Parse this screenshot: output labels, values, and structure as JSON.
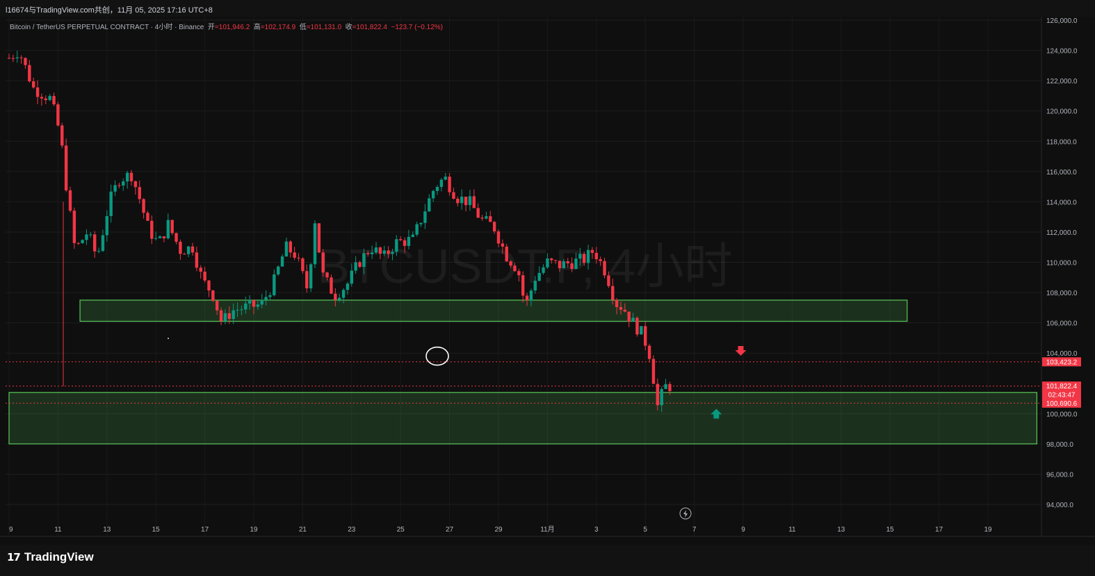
{
  "header": {
    "share_text": "l16674与TradingView.com共创，11月 05, 2025 17:16 UTC+8"
  },
  "legend": {
    "symbol": "Bitcoin / TetherUS PERPETUAL CONTRACT · 4小时 · Binance",
    "open_label": "开",
    "open_value": "=101,946.2",
    "high_label": "高",
    "high_value": "=102,174.9",
    "low_label": "低",
    "low_value": "=101,131.0",
    "close_label": "收",
    "close_value": "=101,822.4",
    "change": "−123.7 (−0.12%)"
  },
  "watermark": "BTCUSDT.P, 4小时",
  "brand": {
    "icon": "17",
    "name": "TradingView"
  },
  "colors": {
    "up": "#089981",
    "down": "#f23645",
    "zone": "#4caf50",
    "background": "#121212"
  },
  "chart_data": {
    "type": "candlestick",
    "timeframe": "4小时",
    "yaxis_ticks": [
      "126,000.0",
      "124,000.0",
      "122,000.0",
      "120,000.0",
      "118,000.0",
      "116,000.0",
      "114,000.0",
      "112,000.0",
      "110,000.0",
      "108,000.0",
      "106,000.0",
      "104,000.0",
      "100,000.0",
      "98,000.0",
      "96,000.0",
      "94,000.0"
    ],
    "xaxis_ticks": [
      "9",
      "11",
      "13",
      "15",
      "17",
      "19",
      "21",
      "23",
      "25",
      "27",
      "29",
      "11月",
      "3",
      "5",
      "7",
      "9",
      "11",
      "13",
      "15",
      "17",
      "19"
    ],
    "ylim": [
      93000,
      126500
    ],
    "price_labels": [
      {
        "text": "103,423.2",
        "value": 103423.2,
        "color": "#f23645"
      },
      {
        "text": "101,822.4",
        "value": 101822.4,
        "color": "#f23645"
      },
      {
        "text": "02:43:47",
        "value": 101260,
        "color": "#f23645"
      },
      {
        "text": "100,690.6",
        "value": 100690.6,
        "color": "#f23645"
      }
    ],
    "zones": [
      {
        "from_x": 2.9,
        "to_x": 36.7,
        "low": 106100,
        "high": 107500
      },
      {
        "from_x": 0.0,
        "to_x": 42.0,
        "low": 98000,
        "high": 101400
      }
    ],
    "horizontal_lines": [
      103423.2,
      101822.4,
      100690.6
    ],
    "markers": [
      {
        "type": "down-arrow",
        "x": 29.9,
        "price": 104100
      },
      {
        "type": "up-arrow",
        "x": 28.9,
        "price": 99950
      },
      {
        "type": "circle",
        "x": 17.5,
        "price": 103800
      }
    ],
    "keypoints": [
      {
        "x": 0.0,
        "price": 123500
      },
      {
        "x": 0.4,
        "price": 124000
      },
      {
        "x": 1.0,
        "price": 121500
      },
      {
        "x": 1.7,
        "price": 120800
      },
      {
        "x": 2.1,
        "price": 118400
      },
      {
        "x": 2.4,
        "price": 114200
      },
      {
        "x": 2.7,
        "price": 110800
      },
      {
        "x": 3.2,
        "price": 112000
      },
      {
        "x": 3.6,
        "price": 110300
      },
      {
        "x": 4.1,
        "price": 114000
      },
      {
        "x": 4.5,
        "price": 115500
      },
      {
        "x": 5.0,
        "price": 115800
      },
      {
        "x": 5.3,
        "price": 114400
      },
      {
        "x": 5.7,
        "price": 112200
      },
      {
        "x": 6.1,
        "price": 111200
      },
      {
        "x": 6.5,
        "price": 112500
      },
      {
        "x": 7.0,
        "price": 110800
      },
      {
        "x": 7.5,
        "price": 111000
      },
      {
        "x": 7.9,
        "price": 108800
      },
      {
        "x": 8.3,
        "price": 108000
      },
      {
        "x": 8.7,
        "price": 106000
      },
      {
        "x": 9.1,
        "price": 106800
      },
      {
        "x": 9.6,
        "price": 107000
      },
      {
        "x": 10.3,
        "price": 107200
      },
      {
        "x": 10.8,
        "price": 108600
      },
      {
        "x": 11.3,
        "price": 111000
      },
      {
        "x": 11.7,
        "price": 110500
      },
      {
        "x": 12.2,
        "price": 108200
      },
      {
        "x": 12.5,
        "price": 112800
      },
      {
        "x": 12.8,
        "price": 109200
      },
      {
        "x": 13.3,
        "price": 107800
      },
      {
        "x": 13.8,
        "price": 108500
      },
      {
        "x": 14.3,
        "price": 110000
      },
      {
        "x": 14.8,
        "price": 111000
      },
      {
        "x": 15.3,
        "price": 110300
      },
      {
        "x": 15.8,
        "price": 111300
      },
      {
        "x": 16.5,
        "price": 111500
      },
      {
        "x": 17.0,
        "price": 113500
      },
      {
        "x": 17.4,
        "price": 115000
      },
      {
        "x": 17.8,
        "price": 115600
      },
      {
        "x": 18.3,
        "price": 114300
      },
      {
        "x": 18.8,
        "price": 114000
      },
      {
        "x": 19.3,
        "price": 112800
      },
      {
        "x": 19.8,
        "price": 112400
      },
      {
        "x": 20.3,
        "price": 110500
      },
      {
        "x": 20.8,
        "price": 109500
      },
      {
        "x": 21.1,
        "price": 107000
      },
      {
        "x": 21.5,
        "price": 109000
      },
      {
        "x": 22.0,
        "price": 110000
      },
      {
        "x": 22.5,
        "price": 109800
      },
      {
        "x": 23.0,
        "price": 110000
      },
      {
        "x": 23.5,
        "price": 110200
      },
      {
        "x": 23.9,
        "price": 110800
      },
      {
        "x": 24.4,
        "price": 109300
      },
      {
        "x": 24.8,
        "price": 107300
      },
      {
        "x": 25.1,
        "price": 107000
      },
      {
        "x": 25.5,
        "price": 106000
      },
      {
        "x": 25.9,
        "price": 105200
      },
      {
        "x": 26.2,
        "price": 103800
      },
      {
        "x": 26.5,
        "price": 100500
      },
      {
        "x": 26.8,
        "price": 101800
      },
      {
        "x": 27.0,
        "price": 101822.4
      }
    ]
  }
}
